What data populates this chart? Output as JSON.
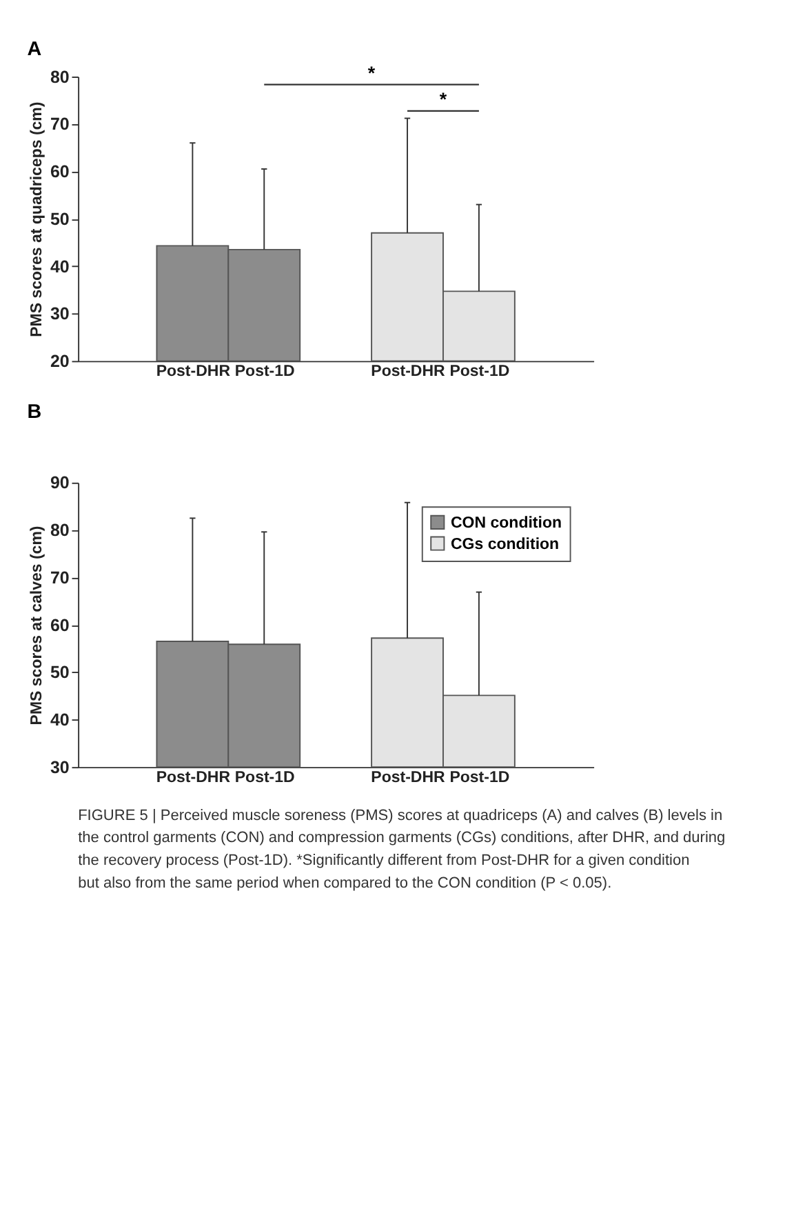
{
  "chart_data": [
    {
      "type": "bar",
      "title": "A",
      "ylabel": "PMS scores at quadriceps (cm)",
      "categories": [
        "Post-DHR",
        "Post-1D",
        "Post-DHR",
        "Post-1D"
      ],
      "ylim": [
        20,
        80
      ],
      "yticks": [
        20,
        30,
        40,
        50,
        60,
        70,
        80
      ],
      "grid": false,
      "series": [
        {
          "color": "#8c8c8c",
          "values": [
            44.3,
            43.5,
            null,
            null
          ],
          "errors": [
            [
              44.3,
              66
            ],
            [
              43.5,
              60.5
            ],
            null,
            null
          ]
        },
        {
          "color": "#e4e4e4",
          "values": [
            null,
            null,
            47.0,
            34.7
          ],
          "errors": [
            null,
            null,
            [
              47.0,
              71.2
            ],
            [
              34.7,
              53.0
            ]
          ]
        }
      ],
      "annotations": [
        "*",
        "*"
      ]
    },
    {
      "type": "bar",
      "title": "B",
      "ylabel": "PMS scores at calves (cm)",
      "categories": [
        "Post-DHR",
        "Post-1D",
        "Post-DHR",
        "Post-1D"
      ],
      "ylim": [
        30,
        90
      ],
      "yticks": [
        30,
        40,
        50,
        60,
        70,
        80,
        90
      ],
      "grid": false,
      "legend": "top right",
      "series": [
        {
          "name": "CON condition",
          "color": "#8c8c8c",
          "values": [
            56.5,
            55.9,
            null,
            null
          ],
          "errors": [
            [
              56.5,
              82.5
            ],
            [
              55.9,
              79.6
            ],
            null,
            null
          ]
        },
        {
          "name": "CGs condition",
          "color": "#e4e4e4",
          "values": [
            null,
            null,
            57.2,
            45.1
          ],
          "errors": [
            null,
            null,
            [
              57.2,
              85.8
            ],
            [
              45.1,
              66.9
            ]
          ]
        }
      ],
      "annotations": [
        "FIGURE 5 | Perceived muscle soreness (PMS) scores at quadriceps (A) and calves (B) levels in the control garments (CON) and compression garments (CGs) conditions, after DHR, and during the recovery process (Post-1D). *Significantly different from Post-DHR for a given condition but also from the same period when compared to the CON condition (P < 0.05)."
      ]
    }
  ]
}
